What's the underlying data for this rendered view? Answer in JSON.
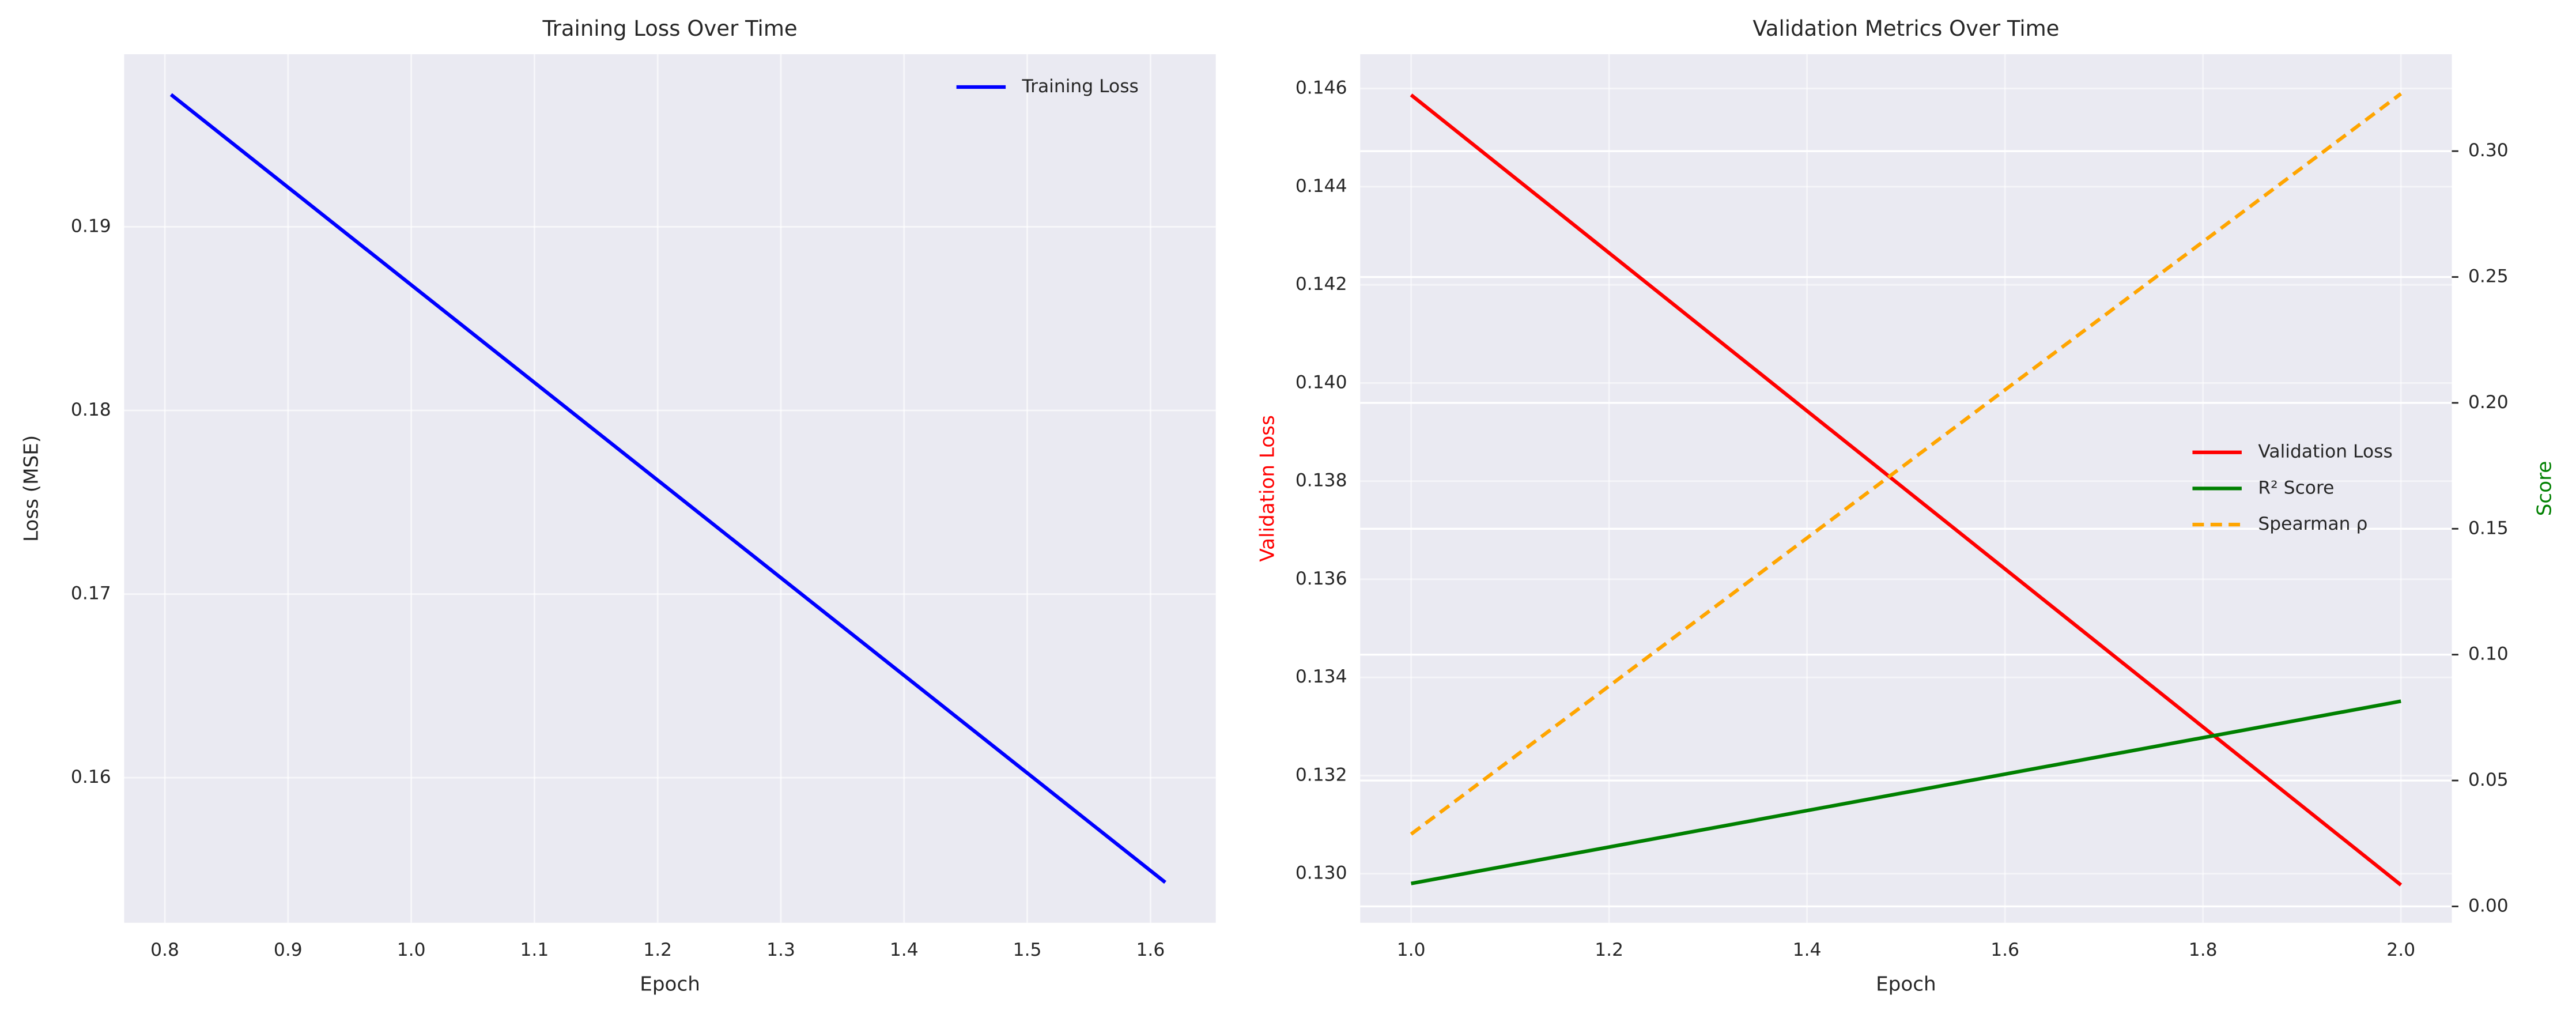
{
  "chart_data": [
    {
      "type": "line",
      "title": "Training Loss Over Time",
      "xlabel": "Epoch",
      "ylabel": "Loss (MSE)",
      "x": [
        0.805,
        1.612
      ],
      "series": [
        {
          "name": "Training Loss",
          "color": "#0000ff",
          "linestyle": "solid",
          "values": [
            0.1972,
            0.1543
          ]
        }
      ],
      "xlim": [
        0.767,
        1.653
      ],
      "ylim": [
        0.1521,
        0.1994
      ],
      "xticks": [
        0.8,
        0.9,
        {
          "value": 1.0,
          "label": "1.0"
        },
        1.1,
        1.2,
        1.3,
        1.4,
        1.5,
        1.6
      ],
      "yticks": [
        0.16,
        0.17,
        0.18,
        0.19
      ],
      "grid": true,
      "legend": "upper right"
    },
    {
      "type": "line",
      "title": "Validation Metrics Over Time",
      "xlabel": "Epoch",
      "ylabel": "Validation Loss",
      "ylabel_color": "#ff0000",
      "y2label": "Score",
      "y2label_color": "#008000",
      "x": [
        1.0,
        2.0
      ],
      "series": [
        {
          "name": "Validation Loss",
          "color": "#ff0000",
          "linestyle": "solid",
          "values": [
            0.14587,
            0.12977
          ]
        },
        {
          "name": "R² Score",
          "color": "#008000",
          "linestyle": "solid",
          "axis": "y2",
          "values": [
            0.0091,
            0.0815
          ]
        },
        {
          "name": "Spearman ρ",
          "color": "#ffa500",
          "linestyle": "dashed",
          "axis": "y2",
          "values": [
            0.0287,
            0.3228
          ]
        }
      ],
      "xlim": [
        0.9486,
        2.0514
      ],
      "ylim": [
        0.129,
        0.1467
      ],
      "y2lim": [
        -0.0065,
        0.3385
      ],
      "xticks": [
        {
          "value": 1.0,
          "label": "1.0"
        },
        1.2,
        1.4,
        1.6,
        1.8,
        {
          "value": 2.0,
          "label": "2.0"
        }
      ],
      "yticks": [
        {
          "value": 0.13,
          "label": "0.130"
        },
        0.132,
        0.134,
        0.136,
        0.138,
        {
          "value": 0.14,
          "label": "0.140"
        },
        0.142,
        0.144,
        0.146
      ],
      "y2ticks": [
        {
          "value": 0,
          "label": "0.00"
        },
        {
          "value": 0.05,
          "label": "0.05"
        },
        {
          "value": 0.1,
          "label": "0.10"
        },
        {
          "value": 0.15,
          "label": "0.15"
        },
        {
          "value": 0.2,
          "label": "0.20"
        },
        {
          "value": 0.25,
          "label": "0.25"
        },
        {
          "value": 0.3,
          "label": "0.30"
        }
      ],
      "grid": true,
      "legend": "center right"
    }
  ]
}
